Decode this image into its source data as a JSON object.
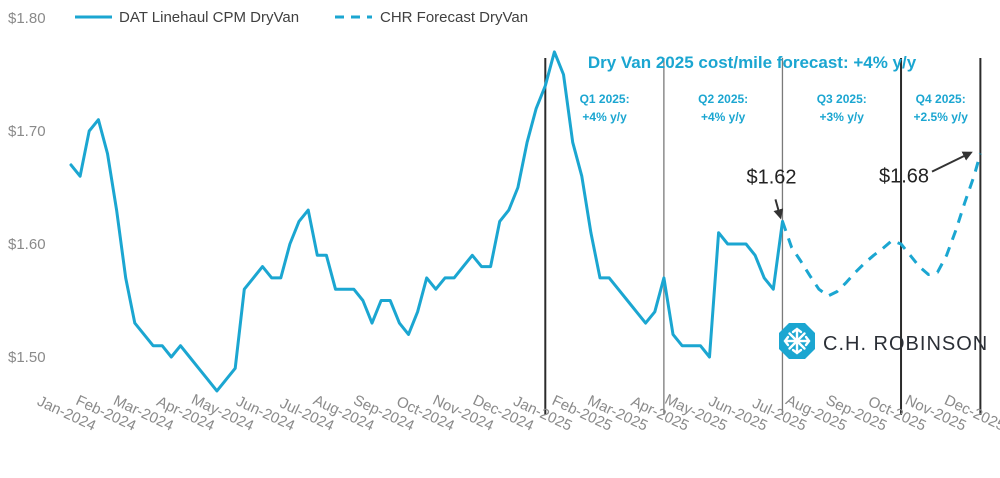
{
  "colors": {
    "series": "#1ba6d1",
    "annotation_text": "#1ba6d1",
    "divider": "#2b2b2b",
    "quarter_divider": "#7a7a7a",
    "axis_text": "#8a8a8a",
    "arrow": "#333333",
    "logo": "#1ba6d1"
  },
  "annotations": {
    "forecast_title": "Dry Van 2025 cost/mile forecast: +4% y/y",
    "quarters": [
      {
        "name": "Q1 2025:",
        "change": "+4% y/y"
      },
      {
        "name": "Q2 2025:",
        "change": "+4% y/y"
      },
      {
        "name": "Q3 2025:",
        "change": "+3% y/y"
      },
      {
        "name": "Q4 2025:",
        "change": "+2.5% y/y"
      }
    ],
    "callouts": [
      {
        "text": "$1.62",
        "x": 78,
        "y": 1.62
      },
      {
        "text": "$1.68",
        "x": 99,
        "y": 1.68
      }
    ]
  },
  "logo": {
    "text": "C.H. ROBINSON",
    "icon": "chr-logo-icon"
  },
  "chart_data": {
    "type": "line",
    "title": "",
    "xlabel": "",
    "ylabel": "",
    "ylim": [
      1.45,
      1.8
    ],
    "yticks": [
      {
        "value": 1.5,
        "label": "$1.50"
      },
      {
        "value": 1.6,
        "label": "$1.60"
      },
      {
        "value": 1.7,
        "label": "$1.70"
      },
      {
        "value": 1.8,
        "label": "$1.80"
      }
    ],
    "xlim": [
      0,
      99
    ],
    "grid": false,
    "legend": "top-left",
    "x_unit": "weeks from start of Jan-2024",
    "xticks": [
      {
        "x": 0,
        "label": "Jan-2024"
      },
      {
        "x": 4.4,
        "label": "Feb-2024"
      },
      {
        "x": 8.5,
        "label": "Mar-2024"
      },
      {
        "x": 13,
        "label": "Apr-2024"
      },
      {
        "x": 17.3,
        "label": "May-2024"
      },
      {
        "x": 21.8,
        "label": "Jun-2024"
      },
      {
        "x": 26.1,
        "label": "Jul-2024"
      },
      {
        "x": 30.5,
        "label": "Aug-2024"
      },
      {
        "x": 34.9,
        "label": "Sep-2024"
      },
      {
        "x": 39.3,
        "label": "Oct-2024"
      },
      {
        "x": 43.6,
        "label": "Nov-2024"
      },
      {
        "x": 48,
        "label": "Dec-2024"
      },
      {
        "x": 52.2,
        "label": "Jan-2025"
      },
      {
        "x": 56.6,
        "label": "Feb-2025"
      },
      {
        "x": 60.5,
        "label": "Mar-2025"
      },
      {
        "x": 65,
        "label": "Apr-2025"
      },
      {
        "x": 69.2,
        "label": "May-2025"
      },
      {
        "x": 73.6,
        "label": "Jun-2025"
      },
      {
        "x": 77.9,
        "label": "Jul-2025"
      },
      {
        "x": 82.3,
        "label": "Aug-2025"
      },
      {
        "x": 86.7,
        "label": "Sep-2025"
      },
      {
        "x": 91,
        "label": "Oct-2025"
      },
      {
        "x": 95.4,
        "label": "Nov-2025"
      },
      {
        "x": 99.7,
        "label": "Dec-2025"
      }
    ],
    "dividers": [
      {
        "x": 52,
        "style": "major"
      },
      {
        "x": 65,
        "style": "minor"
      },
      {
        "x": 78,
        "style": "minor"
      },
      {
        "x": 91,
        "style": "major"
      },
      {
        "x": 99.7,
        "style": "major"
      }
    ],
    "series": [
      {
        "name": "DAT Linehaul CPM DryVan",
        "style": "solid",
        "points": [
          [
            0,
            1.67
          ],
          [
            1,
            1.66
          ],
          [
            2,
            1.7
          ],
          [
            3,
            1.71
          ],
          [
            4,
            1.68
          ],
          [
            5,
            1.63
          ],
          [
            6,
            1.57
          ],
          [
            7,
            1.53
          ],
          [
            8,
            1.52
          ],
          [
            9,
            1.51
          ],
          [
            10,
            1.51
          ],
          [
            11,
            1.5
          ],
          [
            12,
            1.51
          ],
          [
            13,
            1.5
          ],
          [
            14,
            1.49
          ],
          [
            15,
            1.48
          ],
          [
            16,
            1.47
          ],
          [
            17,
            1.48
          ],
          [
            18,
            1.49
          ],
          [
            19,
            1.56
          ],
          [
            20,
            1.57
          ],
          [
            21,
            1.58
          ],
          [
            22,
            1.57
          ],
          [
            23,
            1.57
          ],
          [
            24,
            1.6
          ],
          [
            25,
            1.62
          ],
          [
            26,
            1.63
          ],
          [
            27,
            1.59
          ],
          [
            28,
            1.59
          ],
          [
            29,
            1.56
          ],
          [
            30,
            1.56
          ],
          [
            31,
            1.56
          ],
          [
            32,
            1.55
          ],
          [
            33,
            1.53
          ],
          [
            34,
            1.55
          ],
          [
            35,
            1.55
          ],
          [
            36,
            1.53
          ],
          [
            37,
            1.52
          ],
          [
            38,
            1.54
          ],
          [
            39,
            1.57
          ],
          [
            40,
            1.56
          ],
          [
            41,
            1.57
          ],
          [
            42,
            1.57
          ],
          [
            43,
            1.58
          ],
          [
            44,
            1.59
          ],
          [
            45,
            1.58
          ],
          [
            46,
            1.58
          ],
          [
            47,
            1.62
          ],
          [
            48,
            1.63
          ],
          [
            49,
            1.65
          ],
          [
            50,
            1.69
          ],
          [
            51,
            1.72
          ],
          [
            52,
            1.74
          ],
          [
            53,
            1.77
          ],
          [
            54,
            1.75
          ],
          [
            55,
            1.69
          ],
          [
            56,
            1.66
          ],
          [
            57,
            1.61
          ],
          [
            58,
            1.57
          ],
          [
            59,
            1.57
          ],
          [
            60,
            1.56
          ],
          [
            61,
            1.55
          ],
          [
            62,
            1.54
          ],
          [
            63,
            1.53
          ],
          [
            64,
            1.54
          ],
          [
            65,
            1.57
          ],
          [
            66,
            1.52
          ],
          [
            67,
            1.51
          ],
          [
            68,
            1.51
          ],
          [
            69,
            1.51
          ],
          [
            70,
            1.5
          ],
          [
            71,
            1.61
          ],
          [
            72,
            1.6
          ],
          [
            73,
            1.6
          ],
          [
            74,
            1.6
          ],
          [
            75,
            1.59
          ],
          [
            76,
            1.57
          ],
          [
            77,
            1.56
          ],
          [
            78,
            1.62
          ]
        ]
      },
      {
        "name": "CHR Forecast DryVan",
        "style": "dashed",
        "points": [
          [
            78,
            1.62
          ],
          [
            79,
            1.597
          ],
          [
            80,
            1.585
          ],
          [
            81,
            1.572
          ],
          [
            82,
            1.56
          ],
          [
            83,
            1.554
          ],
          [
            84,
            1.558
          ],
          [
            85,
            1.566
          ],
          [
            86,
            1.575
          ],
          [
            87,
            1.583
          ],
          [
            88,
            1.59
          ],
          [
            89,
            1.596
          ],
          [
            90,
            1.603
          ],
          [
            91,
            1.6
          ],
          [
            92,
            1.59
          ],
          [
            93,
            1.58
          ],
          [
            94,
            1.573
          ],
          [
            95,
            1.575
          ],
          [
            96,
            1.59
          ],
          [
            97,
            1.612
          ],
          [
            98,
            1.637
          ],
          [
            99,
            1.66
          ],
          [
            99.7,
            1.68
          ]
        ]
      }
    ]
  }
}
